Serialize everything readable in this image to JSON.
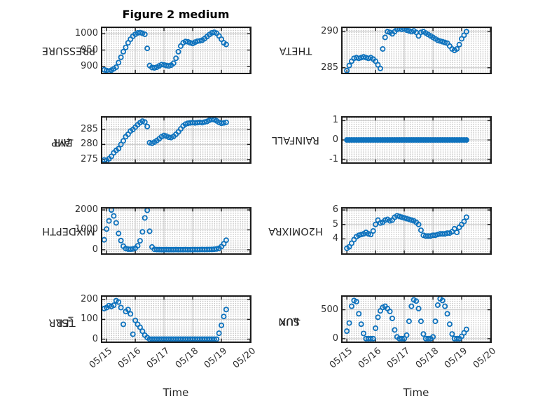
{
  "figure": {
    "title": "Figure 2 medium",
    "xlabel": "Time"
  },
  "style": {
    "marker_color": "#0E72BD",
    "axis_color": "#1c1c1c",
    "grid_major_color": "#c9c9c9",
    "grid_minor_dot_color": "#c4c4c4",
    "text_color": "#262626",
    "background": "#ffffff"
  },
  "chart_data": {
    "type": "scatter",
    "title": "Figure 2 medium",
    "xlabel": "Time",
    "x_unit": "days since 05/15",
    "xlim": [
      -0.15,
      5.0
    ],
    "xticks": [
      0,
      1,
      2,
      3,
      4,
      5
    ],
    "xtick_labels": [
      "05/15",
      "05/16",
      "05/17",
      "05/18",
      "05/19",
      "05/20"
    ],
    "grid": "major solid + minor dotted",
    "legend": "none",
    "marker": "open circle",
    "t": [
      -0.083,
      0,
      0.083,
      0.167,
      0.25,
      0.333,
      0.417,
      0.5,
      0.583,
      0.667,
      0.75,
      0.833,
      0.917,
      1.0,
      1.083,
      1.167,
      1.25,
      1.333,
      1.417,
      1.5,
      1.583,
      1.667,
      1.75,
      1.833,
      1.917,
      2.0,
      2.083,
      2.167,
      2.25,
      2.333,
      2.417,
      2.5,
      2.583,
      2.667,
      2.75,
      2.833,
      2.917,
      3.0,
      3.083,
      3.167,
      3.25,
      3.333,
      3.417,
      3.5,
      3.583,
      3.667,
      3.75,
      3.833,
      3.917,
      4.0,
      4.083,
      4.167
    ],
    "subplots": [
      {
        "name": "PRESSURE",
        "col": 0,
        "row": 0,
        "label_parts": [
          {
            "t": "PRESSURE"
          }
        ],
        "ylim": [
          881,
          1017
        ],
        "yticks": [
          900,
          950,
          1000
        ],
        "values": [
          890,
          888,
          886,
          889,
          893,
          898,
          912,
          928,
          945,
          958,
          972,
          983,
          992,
          998,
          1002,
          1003,
          1001,
          998,
          955,
          903,
          897,
          896,
          898,
          902,
          906,
          905,
          903,
          902,
          904,
          910,
          925,
          945,
          962,
          972,
          976,
          975,
          972,
          970,
          974,
          977,
          978,
          980,
          985,
          991,
          997,
          1002,
          1004,
          1001,
          993,
          983,
          972,
          967
        ]
      },
      {
        "name": "THETA",
        "col": 1,
        "row": 0,
        "label_parts": [
          {
            "t": "THETA"
          }
        ],
        "ylim": [
          284.3,
          290.5
        ],
        "yticks": [
          285,
          290
        ],
        "values": [
          null,
          284.6,
          285.3,
          285.9,
          286.3,
          286.4,
          286.3,
          286.4,
          286.5,
          286.4,
          286.3,
          286.4,
          286.2,
          285.9,
          285.4,
          284.9,
          287.6,
          289.2,
          290.0,
          289.9,
          289.7,
          290.0,
          290.3,
          290.4,
          290.3,
          290.4,
          290.2,
          290.1,
          290.0,
          290.1,
          289.9,
          289.4,
          289.9,
          290.0,
          289.8,
          289.6,
          289.4,
          289.2,
          289.0,
          288.8,
          288.7,
          288.6,
          288.5,
          288.4,
          288.0,
          287.6,
          287.4,
          287.6,
          288.2,
          289.0,
          289.5,
          290.0
        ]
      },
      {
        "name": "AIR_TEMP",
        "col": 0,
        "row": 1,
        "label_parts": [
          {
            "t": "AIR"
          },
          {
            "t": "T",
            "sub": true
          },
          {
            "t": "EMP"
          }
        ],
        "ylim": [
          274,
          289
        ],
        "yticks": [
          275,
          280,
          285
        ],
        "values": [
          274.8,
          274.6,
          275.2,
          276.0,
          277.2,
          278.0,
          278.6,
          280.0,
          281.2,
          282.6,
          283.4,
          284.5,
          285.0,
          285.8,
          286.6,
          287.3,
          287.8,
          287.5,
          286.0,
          280.6,
          280.4,
          280.8,
          281.3,
          281.9,
          282.6,
          283.0,
          282.8,
          282.4,
          282.3,
          282.7,
          283.4,
          284.2,
          285.2,
          286.2,
          286.8,
          287.1,
          287.2,
          287.3,
          287.2,
          287.3,
          287.4,
          287.3,
          287.5,
          287.7,
          288.1,
          288.4,
          288.3,
          287.9,
          287.4,
          287.1,
          287.2,
          287.4
        ]
      },
      {
        "name": "RAINFALL",
        "col": 1,
        "row": 1,
        "label_parts": [
          {
            "t": "RAINFALL"
          }
        ],
        "ylim": [
          -1.16,
          1.16
        ],
        "yticks": [
          -1,
          0,
          1
        ],
        "solid": true,
        "values": [
          null,
          0,
          0,
          0,
          0,
          0,
          0,
          0,
          0,
          0,
          0,
          0,
          0,
          0,
          0,
          0,
          0,
          0,
          0,
          0,
          0,
          0,
          0,
          0,
          0,
          0,
          0,
          0,
          0,
          0,
          0,
          0,
          0,
          0,
          0,
          0,
          0,
          0,
          0,
          0,
          0,
          0,
          0,
          0,
          0,
          0,
          0,
          0,
          0,
          0,
          0,
          0
        ]
      },
      {
        "name": "MIXDEPTH",
        "col": 0,
        "row": 2,
        "label_parts": [
          {
            "t": "MIXDEPTH"
          }
        ],
        "ylim": [
          -180,
          2070
        ],
        "yticks": [
          0,
          1000,
          2000
        ],
        "values": [
          500,
          1040,
          1450,
          2000,
          1700,
          1350,
          820,
          460,
          180,
          60,
          30,
          25,
          40,
          80,
          200,
          450,
          900,
          1600,
          1980,
          930,
          140,
          20,
          10,
          8,
          5,
          5,
          8,
          5,
          6,
          5,
          8,
          5,
          6,
          5,
          8,
          5,
          6,
          8,
          10,
          8,
          10,
          12,
          10,
          12,
          15,
          18,
          25,
          40,
          70,
          160,
          300,
          480
        ]
      },
      {
        "name": "H2OMIXRA",
        "col": 1,
        "row": 2,
        "label_parts": [
          {
            "t": "H2OMIXRA"
          }
        ],
        "ylim": [
          3.0,
          6.1
        ],
        "yticks": [
          4,
          5,
          6
        ],
        "values": [
          null,
          3.35,
          3.45,
          3.7,
          3.95,
          4.15,
          4.25,
          4.3,
          4.35,
          4.45,
          4.35,
          4.3,
          4.55,
          5.0,
          5.3,
          5.1,
          5.15,
          5.3,
          5.35,
          5.25,
          5.3,
          5.5,
          5.6,
          5.55,
          5.5,
          5.45,
          5.4,
          5.35,
          5.3,
          5.25,
          5.15,
          5.0,
          4.6,
          4.25,
          4.2,
          4.2,
          4.2,
          4.25,
          4.25,
          4.3,
          4.35,
          4.35,
          4.35,
          4.4,
          4.4,
          4.5,
          4.7,
          4.45,
          4.8,
          5.0,
          5.2,
          5.5
        ]
      },
      {
        "name": "TERR_MSL",
        "col": 0,
        "row": 3,
        "label_parts": [
          {
            "t": "TERR"
          },
          {
            "t": "M",
            "sub": true
          },
          {
            "t": "SL"
          }
        ],
        "ylim": [
          -12,
          215
        ],
        "yticks": [
          0,
          100,
          200
        ],
        "values": [
          155,
          160,
          170,
          165,
          172,
          195,
          188,
          160,
          75,
          140,
          150,
          128,
          25,
          95,
          75,
          60,
          40,
          20,
          8,
          0,
          0,
          0,
          0,
          0,
          0,
          0,
          0,
          0,
          0,
          0,
          0,
          0,
          0,
          0,
          0,
          0,
          0,
          0,
          0,
          0,
          0,
          0,
          0,
          0,
          0,
          0,
          0,
          0,
          30,
          70,
          115,
          150
        ]
      },
      {
        "name": "SUN_FLUX",
        "col": 1,
        "row": 3,
        "label_parts": [
          {
            "t": "SUN"
          },
          {
            "t": "F",
            "sub": true
          },
          {
            "t": "LUX"
          }
        ],
        "ylim": [
          -50,
          725
        ],
        "yticks": [
          0,
          500
        ],
        "values": [
          null,
          130,
          270,
          560,
          660,
          640,
          430,
          250,
          90,
          0,
          0,
          0,
          0,
          180,
          370,
          480,
          540,
          560,
          520,
          470,
          350,
          150,
          30,
          0,
          0,
          0,
          60,
          300,
          560,
          670,
          650,
          520,
          300,
          80,
          0,
          0,
          0,
          30,
          300,
          580,
          690,
          660,
          560,
          430,
          250,
          80,
          0,
          0,
          0,
          40,
          100,
          160
        ]
      }
    ]
  }
}
